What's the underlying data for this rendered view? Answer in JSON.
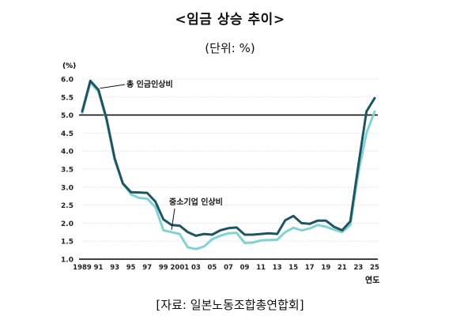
{
  "title": "<임금 상승 추이>",
  "subtitle": "(단위: %)",
  "source": "[자료: 일본노동조합총연합회]",
  "chart_data": {
    "type": "line",
    "y_unit_label": "(%)",
    "x_axis_label": "연도",
    "ylim": [
      1.0,
      6.0
    ],
    "y_ticks": [
      "1.0",
      "1.5",
      "2.0",
      "2.5",
      "3.0",
      "3.5",
      "4.0",
      "4.5",
      "5.0",
      "5.5",
      "6.0"
    ],
    "x_tick_labels": [
      "1989",
      "91",
      "93",
      "95",
      "97",
      "99",
      "2001",
      "03",
      "05",
      "07",
      "09",
      "11",
      "13",
      "15",
      "17",
      "19",
      "21",
      "23",
      "25"
    ],
    "x": [
      1989,
      1990,
      1991,
      1992,
      1993,
      1994,
      1995,
      1996,
      1997,
      1998,
      1999,
      2000,
      2001,
      2002,
      2003,
      2004,
      2005,
      2006,
      2007,
      2008,
      2009,
      2010,
      2011,
      2012,
      2013,
      2014,
      2015,
      2016,
      2017,
      2018,
      2019,
      2020,
      2021,
      2022,
      2023,
      2024,
      2025
    ],
    "reference_line": 5.0,
    "series": [
      {
        "name": "총 인금인상비",
        "color": "#1f5560",
        "values": [
          5.1,
          5.95,
          5.7,
          4.9,
          3.8,
          3.1,
          2.86,
          2.85,
          2.84,
          2.6,
          2.1,
          1.95,
          1.93,
          1.75,
          1.65,
          1.7,
          1.68,
          1.8,
          1.86,
          1.88,
          1.68,
          1.68,
          1.7,
          1.72,
          1.7,
          2.08,
          2.2,
          2.0,
          1.98,
          2.07,
          2.07,
          1.9,
          1.8,
          2.05,
          3.6,
          5.1,
          5.47
        ]
      },
      {
        "name": "중소기업 인상비",
        "color": "#7fd3d3",
        "values": [
          5.05,
          5.9,
          5.65,
          4.85,
          3.75,
          3.1,
          2.8,
          2.7,
          2.68,
          2.45,
          1.8,
          1.75,
          1.7,
          1.33,
          1.28,
          1.35,
          1.55,
          1.65,
          1.72,
          1.73,
          1.45,
          1.46,
          1.52,
          1.53,
          1.54,
          1.75,
          1.87,
          1.8,
          1.85,
          1.95,
          1.9,
          1.82,
          1.75,
          1.95,
          3.4,
          4.5,
          5.1
        ]
      }
    ]
  }
}
